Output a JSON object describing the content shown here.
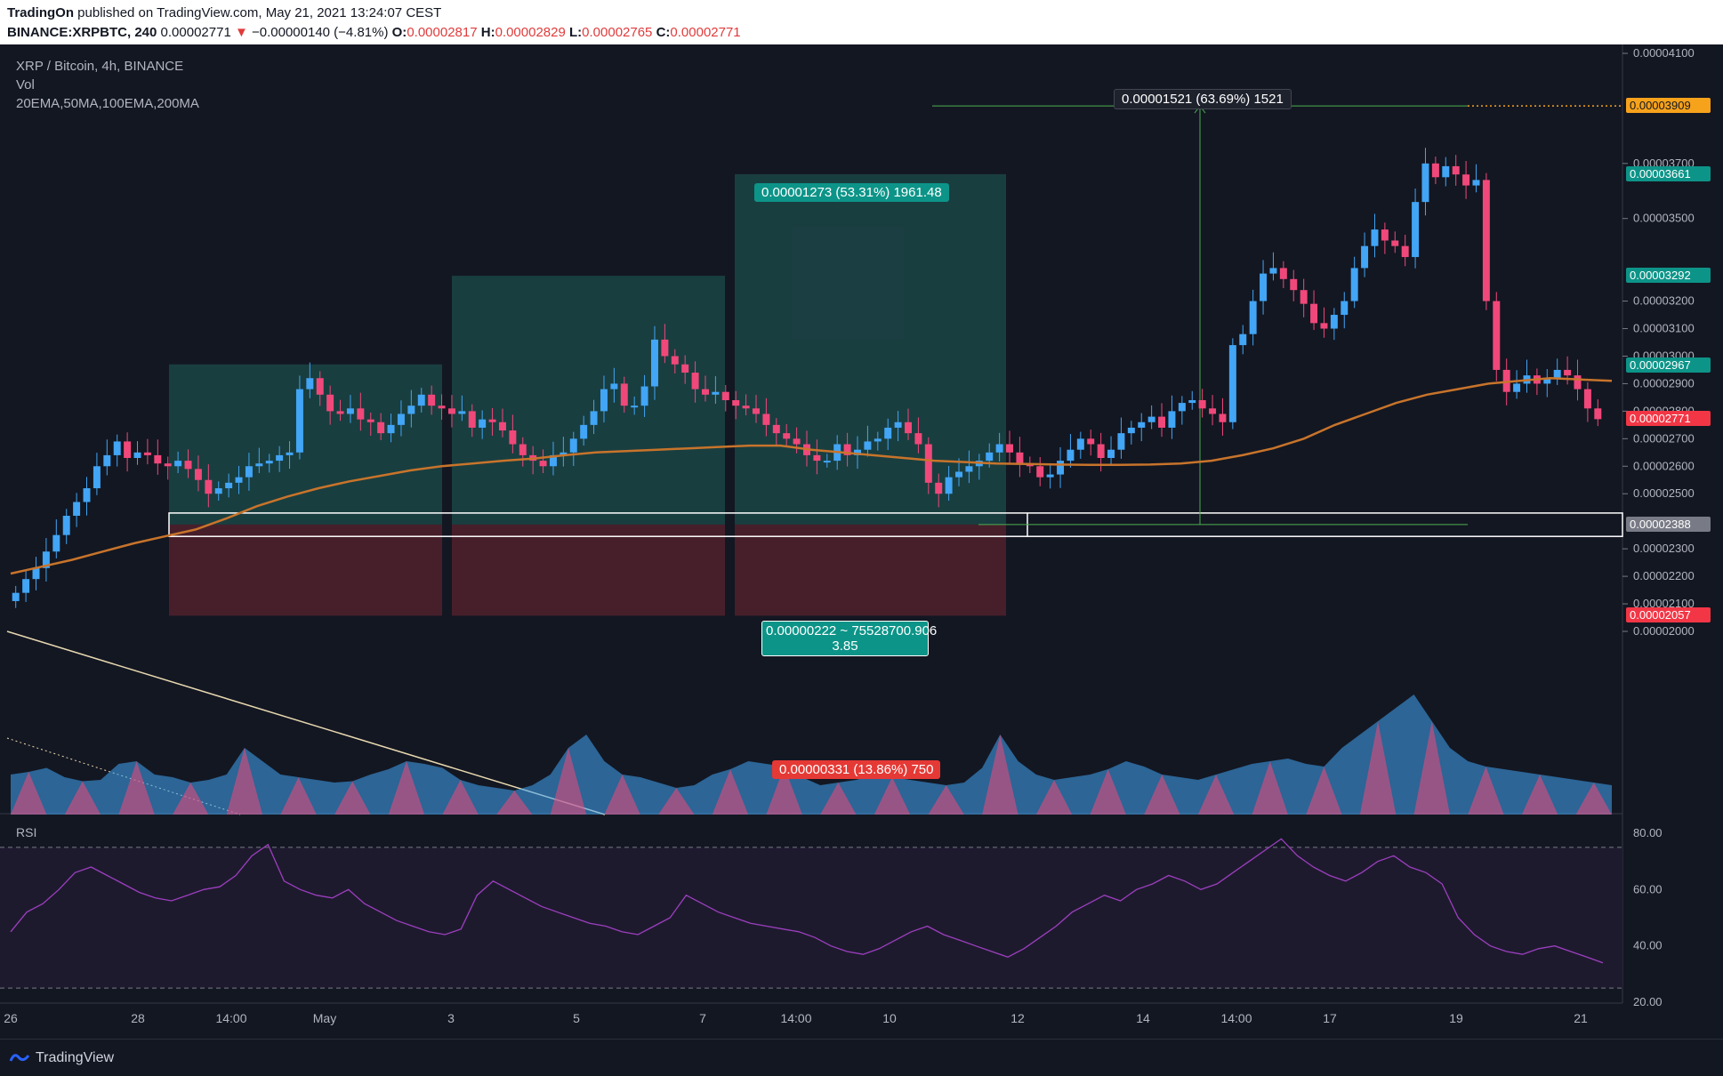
{
  "header": {
    "publisher": "TradingOn",
    "published_text": "published on TradingView.com, May 21, 2021 13:24:07 CEST",
    "symbol": "BINANCE:XRPBTC, 240",
    "last": "0.00002771",
    "change": "−0.00000140 (−4.81%)",
    "o_label": "O:",
    "o": "0.00002817",
    "h_label": "H:",
    "h": "0.00002829",
    "l_label": "L:",
    "l": "0.00002765",
    "c_label": "C:",
    "c": "0.00002771"
  },
  "legend": {
    "title": "XRP / Bitcoin, 4h, BINANCE",
    "vol": "Vol",
    "mas": "20EMA,50MA,100EMA,200MA",
    "rsi": "RSI"
  },
  "callouts": {
    "measure_top": "0.00001521 (63.69%) 1521",
    "long_target": "0.00001273 (53.31%) 1961.48",
    "long_stop": "0.00000331 (13.86%) 750",
    "range_line1": "0.00000222 ~ 75528700.906",
    "range_line2": "3.85"
  },
  "price_tags": [
    {
      "text": "0.00003909",
      "bg": "#f7a21b",
      "fg": "#131722",
      "price": 3909
    },
    {
      "text": "0.00003661",
      "bg": "#0d9488",
      "fg": "#ffffff",
      "price": 3661
    },
    {
      "text": "0.00003292",
      "bg": "#0d9488",
      "fg": "#ffffff",
      "price": 3292
    },
    {
      "text": "0.00002967",
      "bg": "#0d9488",
      "fg": "#ffffff",
      "price": 2967
    },
    {
      "text": "0.00002771",
      "bg": "#f23645",
      "fg": "#ffffff",
      "price": 2771
    },
    {
      "text": "0.00002388",
      "bg": "#787b86",
      "fg": "#ffffff",
      "price": 2388
    },
    {
      "text": "0.00002057",
      "bg": "#f23645",
      "fg": "#ffffff",
      "price": 2057
    }
  ],
  "footer": {
    "brand": "TradingView"
  },
  "colors": {
    "up": "#42a5f5",
    "down": "#f0487a",
    "ma": "#c8742b",
    "rsi": "#9c3fbf",
    "bg": "#131722"
  },
  "chart_data": {
    "type": "candlestick",
    "title": "XRP / Bitcoin, 4h, BINANCE",
    "price_axis_ticks": [
      "0.00004100",
      "0.00003700",
      "0.00003500",
      "0.00003200",
      "0.00003100",
      "0.00003000",
      "0.00002900",
      "0.00002800",
      "0.00002700",
      "0.00002600",
      "0.00002500",
      "0.00002300",
      "0.00002200",
      "0.00002100",
      "0.00002000"
    ],
    "time_axis_ticks": [
      "26",
      "28",
      "14:00",
      "May",
      "3",
      "5",
      "7",
      "14:00",
      "10",
      "12",
      "14",
      "14:00",
      "17",
      "19",
      "21"
    ],
    "rsi_axis_ticks": [
      "80.00",
      "60.00",
      "40.00",
      "20.00"
    ],
    "ylim": [
      1.97e-05,
      4.14e-05
    ],
    "rsi_ylim": [
      20,
      80
    ],
    "close_series": [
      2140,
      2190,
      2230,
      2290,
      2350,
      2420,
      2470,
      2520,
      2600,
      2640,
      2690,
      2630,
      2650,
      2640,
      2610,
      2600,
      2620,
      2590,
      2550,
      2500,
      2520,
      2540,
      2560,
      2600,
      2610,
      2620,
      2640,
      2650,
      2880,
      2920,
      2860,
      2800,
      2790,
      2810,
      2770,
      2760,
      2720,
      2750,
      2790,
      2820,
      2860,
      2820,
      2810,
      2790,
      2800,
      2740,
      2770,
      2760,
      2730,
      2680,
      2640,
      2620,
      2600,
      2640,
      2650,
      2700,
      2750,
      2800,
      2880,
      2900,
      2820,
      2820,
      2890,
      3060,
      3000,
      2970,
      2940,
      2880,
      2860,
      2870,
      2840,
      2820,
      2810,
      2790,
      2750,
      2720,
      2700,
      2680,
      2640,
      2620,
      2620,
      2680,
      2640,
      2660,
      2690,
      2700,
      2740,
      2760,
      2720,
      2680,
      2540,
      2500,
      2560,
      2580,
      2600,
      2620,
      2650,
      2680,
      2650,
      2610,
      2600,
      2560,
      2570,
      2620,
      2660,
      2700,
      2680,
      2630,
      2660,
      2720,
      2740,
      2760,
      2780,
      2740,
      2800,
      2830,
      2840,
      2810,
      2790,
      2760,
      3040,
      3080,
      3200,
      3300,
      3320,
      3280,
      3240,
      3190,
      3120,
      3100,
      3150,
      3200,
      3320,
      3400,
      3460,
      3420,
      3400,
      3360,
      3560,
      3700,
      3650,
      3690,
      3660,
      3620,
      3640,
      3200,
      2950,
      2870,
      2900,
      2930,
      2900,
      2920,
      2950,
      2930,
      2880,
      2810,
      2771
    ],
    "ma_series": [
      2210,
      2235,
      2260,
      2290,
      2320,
      2345,
      2370,
      2410,
      2455,
      2490,
      2520,
      2545,
      2565,
      2585,
      2600,
      2610,
      2620,
      2628,
      2640,
      2650,
      2655,
      2660,
      2665,
      2670,
      2675,
      2675,
      2660,
      2650,
      2640,
      2630,
      2620,
      2615,
      2610,
      2608,
      2606,
      2605,
      2605,
      2606,
      2610,
      2620,
      2640,
      2665,
      2700,
      2750,
      2790,
      2830,
      2860,
      2880,
      2900,
      2910,
      2920,
      2915,
      2910
    ],
    "rsi_series": [
      45,
      52,
      55,
      60,
      66,
      68,
      65,
      62,
      59,
      57,
      56,
      58,
      60,
      61,
      65,
      72,
      76,
      63,
      60,
      58,
      57,
      60,
      55,
      52,
      49,
      47,
      45,
      44,
      46,
      58,
      63,
      60,
      57,
      54,
      52,
      50,
      48,
      47,
      45,
      44,
      47,
      50,
      58,
      55,
      52,
      50,
      48,
      47,
      46,
      45,
      43,
      40,
      38,
      37,
      39,
      42,
      45,
      47,
      44,
      42,
      40,
      38,
      36,
      39,
      43,
      47,
      52,
      55,
      58,
      56,
      60,
      62,
      65,
      63,
      60,
      62,
      66,
      70,
      74,
      78,
      72,
      68,
      65,
      63,
      66,
      70,
      72,
      68,
      66,
      62,
      50,
      44,
      40,
      38,
      37,
      39,
      40,
      38,
      36,
      34
    ],
    "volume_series": [
      30,
      32,
      35,
      28,
      25,
      26,
      38,
      40,
      30,
      28,
      24,
      26,
      30,
      50,
      40,
      30,
      28,
      26,
      24,
      25,
      30,
      34,
      40,
      38,
      35,
      26,
      22,
      20,
      18,
      22,
      30,
      50,
      60,
      40,
      30,
      28,
      24,
      20,
      22,
      30,
      34,
      40,
      38,
      36,
      28,
      22,
      24,
      26,
      30,
      28,
      26,
      24,
      22,
      24,
      35,
      60,
      40,
      30,
      26,
      28,
      30,
      34,
      40,
      36,
      30,
      28,
      26,
      30,
      34,
      38,
      40,
      42,
      38,
      36,
      50,
      60,
      70,
      80,
      90,
      70,
      50,
      40,
      36,
      34,
      32,
      30,
      28,
      26,
      24,
      22
    ]
  }
}
